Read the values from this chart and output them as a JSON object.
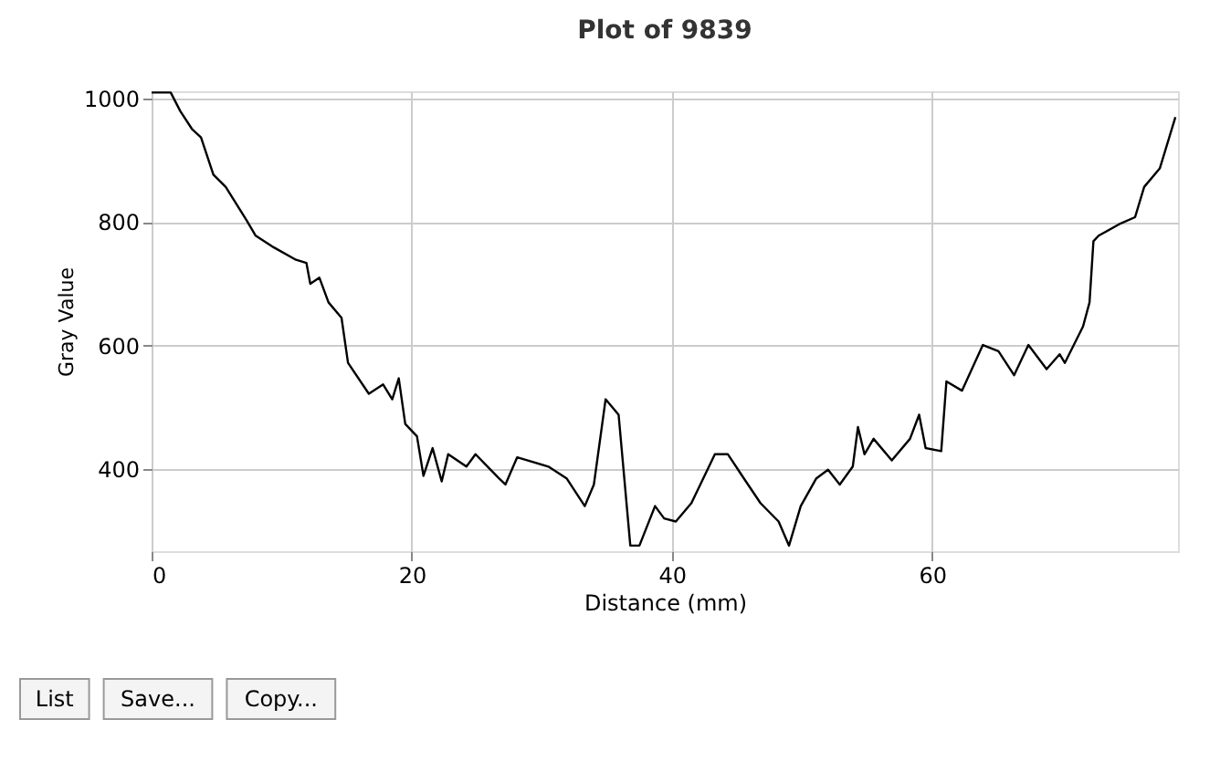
{
  "chart_data": {
    "type": "line",
    "title": "Plot of 9839",
    "xlabel": "Distance (mm)",
    "ylabel": "Gray Value",
    "annotations": [
      "List",
      "Save...",
      "Copy..."
    ],
    "x": [
      0,
      1.47,
      2.2,
      3.1,
      3.8,
      4.75,
      5.7,
      7.3,
      8.0,
      9.4,
      11.1,
      11.9,
      12.2,
      12.9,
      13.6,
      14.6,
      15.1,
      16.7,
      17.8,
      18.5,
      19.0,
      19.5,
      20.4,
      20.9,
      21.6,
      22.3,
      22.8,
      24.2,
      24.9,
      26.7,
      27.2,
      28.1,
      30.5,
      31.9,
      33.3,
      34.0,
      34.9,
      35.9,
      36.8,
      37.5,
      38.7,
      39.4,
      40.3,
      41.5,
      43.3,
      44.3,
      45.4,
      46.8,
      48.2,
      49.0,
      49.9,
      51.1,
      52.0,
      52.9,
      53.9,
      54.3,
      54.8,
      55.5,
      56.9,
      58.3,
      59.0,
      59.5,
      60.7,
      61.1,
      62.3,
      63.9,
      65.1,
      66.3,
      67.4,
      68.8,
      69.8,
      70.2,
      71.6,
      72.1,
      72.4,
      72.8,
      74.5,
      75.6,
      76.3,
      77.5,
      78.7
    ],
    "series": [
      {
        "color": "#000000",
        "values": [
          1010,
          1010,
          980,
          951,
          937,
          877,
          857,
          803,
          778,
          759,
          739,
          734,
          700,
          710,
          670,
          645,
          572,
          522,
          537,
          513,
          547,
          473,
          453,
          389,
          434,
          380,
          424,
          404,
          424,
          385,
          375,
          419,
          404,
          385,
          340,
          375,
          513,
          488,
          276,
          276,
          340,
          320,
          315,
          345,
          424,
          424,
          389,
          345,
          315,
          276,
          340,
          385,
          399,
          375,
          404,
          468,
          424,
          449,
          414,
          449,
          488,
          434,
          429,
          542,
          527,
          601,
          591,
          552,
          601,
          562,
          586,
          572,
          631,
          670,
          769,
          778,
          798,
          808,
          857,
          887,
          970
        ]
      }
    ],
    "xlim": [
      0,
      78.9
    ],
    "ylim": [
      267,
      1012
    ],
    "xticks": [
      0,
      20,
      40,
      60
    ],
    "yticks": [
      400,
      600,
      800,
      1000
    ],
    "grid": true,
    "marker": "none",
    "line_style": "solid"
  }
}
